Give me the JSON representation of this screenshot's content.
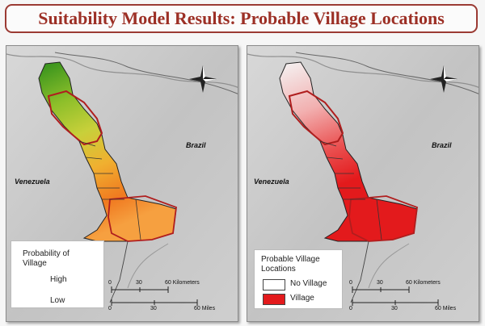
{
  "title": "Suitability Model Results: Probable Village Locations",
  "left_map": {
    "country_venezuela": "Venezuela",
    "country_brazil": "Brazil",
    "legend": {
      "title_line1": "Probability of",
      "title_line2": "Village",
      "high": "High",
      "low": "Low"
    },
    "scale": {
      "t0": "0",
      "t1": "30",
      "t2": "60 Kilometers",
      "b0": "0",
      "b1": "30",
      "b2": "60 Miles"
    }
  },
  "right_map": {
    "country_venezuela": "Venezuela",
    "country_brazil": "Brazil",
    "legend": {
      "title_line1": "Probable Village",
      "title_line2": "Locations",
      "no_village": "No Village",
      "village": "Village"
    },
    "scale": {
      "t0": "0",
      "t1": "30",
      "t2": "60 Kilometers",
      "b0": "0",
      "b1": "30",
      "b2": "60 Miles"
    }
  },
  "colors": {
    "title_border": "#9b3a33",
    "title_text": "#9c2f25",
    "village": "#e31a1c",
    "zone_border": "#b01e1e"
  }
}
